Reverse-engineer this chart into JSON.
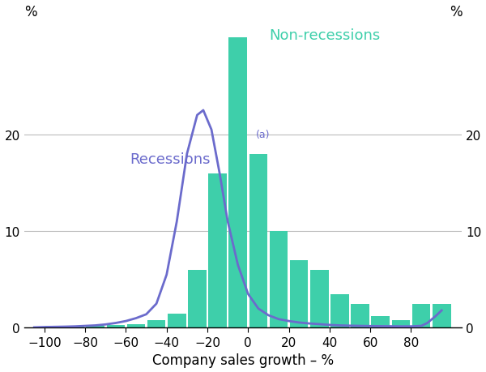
{
  "bar_centers": [
    -95,
    -85,
    -75,
    -65,
    -55,
    -45,
    -35,
    -25,
    -15,
    -5,
    5,
    15,
    25,
    35,
    45,
    55,
    65,
    75,
    85,
    95
  ],
  "bar_heights": [
    0.2,
    0.15,
    0.2,
    0.3,
    0.4,
    0.8,
    1.5,
    6.0,
    16.0,
    30.0,
    18.0,
    10.0,
    7.0,
    6.0,
    3.5,
    2.5,
    1.2,
    0.8,
    2.5,
    2.5
  ],
  "bar_width": 9.0,
  "bar_color": "#3ecfaa",
  "recession_x": [
    -105,
    -100,
    -95,
    -90,
    -85,
    -80,
    -75,
    -70,
    -65,
    -60,
    -55,
    -50,
    -45,
    -40,
    -35,
    -30,
    -25,
    -22,
    -18,
    -14,
    -10,
    -5,
    0,
    5,
    10,
    15,
    20,
    25,
    30,
    35,
    40,
    45,
    50,
    55,
    60,
    65,
    70,
    75,
    80,
    85,
    88,
    92,
    95
  ],
  "recession_y": [
    0.05,
    0.08,
    0.1,
    0.12,
    0.15,
    0.2,
    0.25,
    0.35,
    0.5,
    0.7,
    1.0,
    1.4,
    2.5,
    5.5,
    11.0,
    18.0,
    22.0,
    22.5,
    20.5,
    16.0,
    11.0,
    6.5,
    3.5,
    2.0,
    1.3,
    0.9,
    0.7,
    0.55,
    0.45,
    0.38,
    0.3,
    0.25,
    0.22,
    0.2,
    0.18,
    0.17,
    0.16,
    0.15,
    0.15,
    0.2,
    0.5,
    1.2,
    1.8
  ],
  "recession_color": "#6b6bcc",
  "non_recession_label": "Non-recessions",
  "non_recession_label_color": "#3ecfaa",
  "recession_label": "Recessions",
  "recession_superscript": "(a)",
  "recession_label_color": "#6b6bcc",
  "xlabel": "Company sales growth – %",
  "ylabel_left": "%",
  "ylabel_right": "%",
  "xlim": [
    -110,
    105
  ],
  "ylim": [
    0,
    32
  ],
  "yticks": [
    0,
    10,
    20
  ],
  "xticks": [
    -100,
    -80,
    -60,
    -40,
    -20,
    0,
    20,
    40,
    60,
    80
  ],
  "grid_color": "#bbbbbb",
  "background_color": "#ffffff",
  "tick_label_fontsize": 11,
  "xlabel_fontsize": 12,
  "label_fontsize": 13
}
